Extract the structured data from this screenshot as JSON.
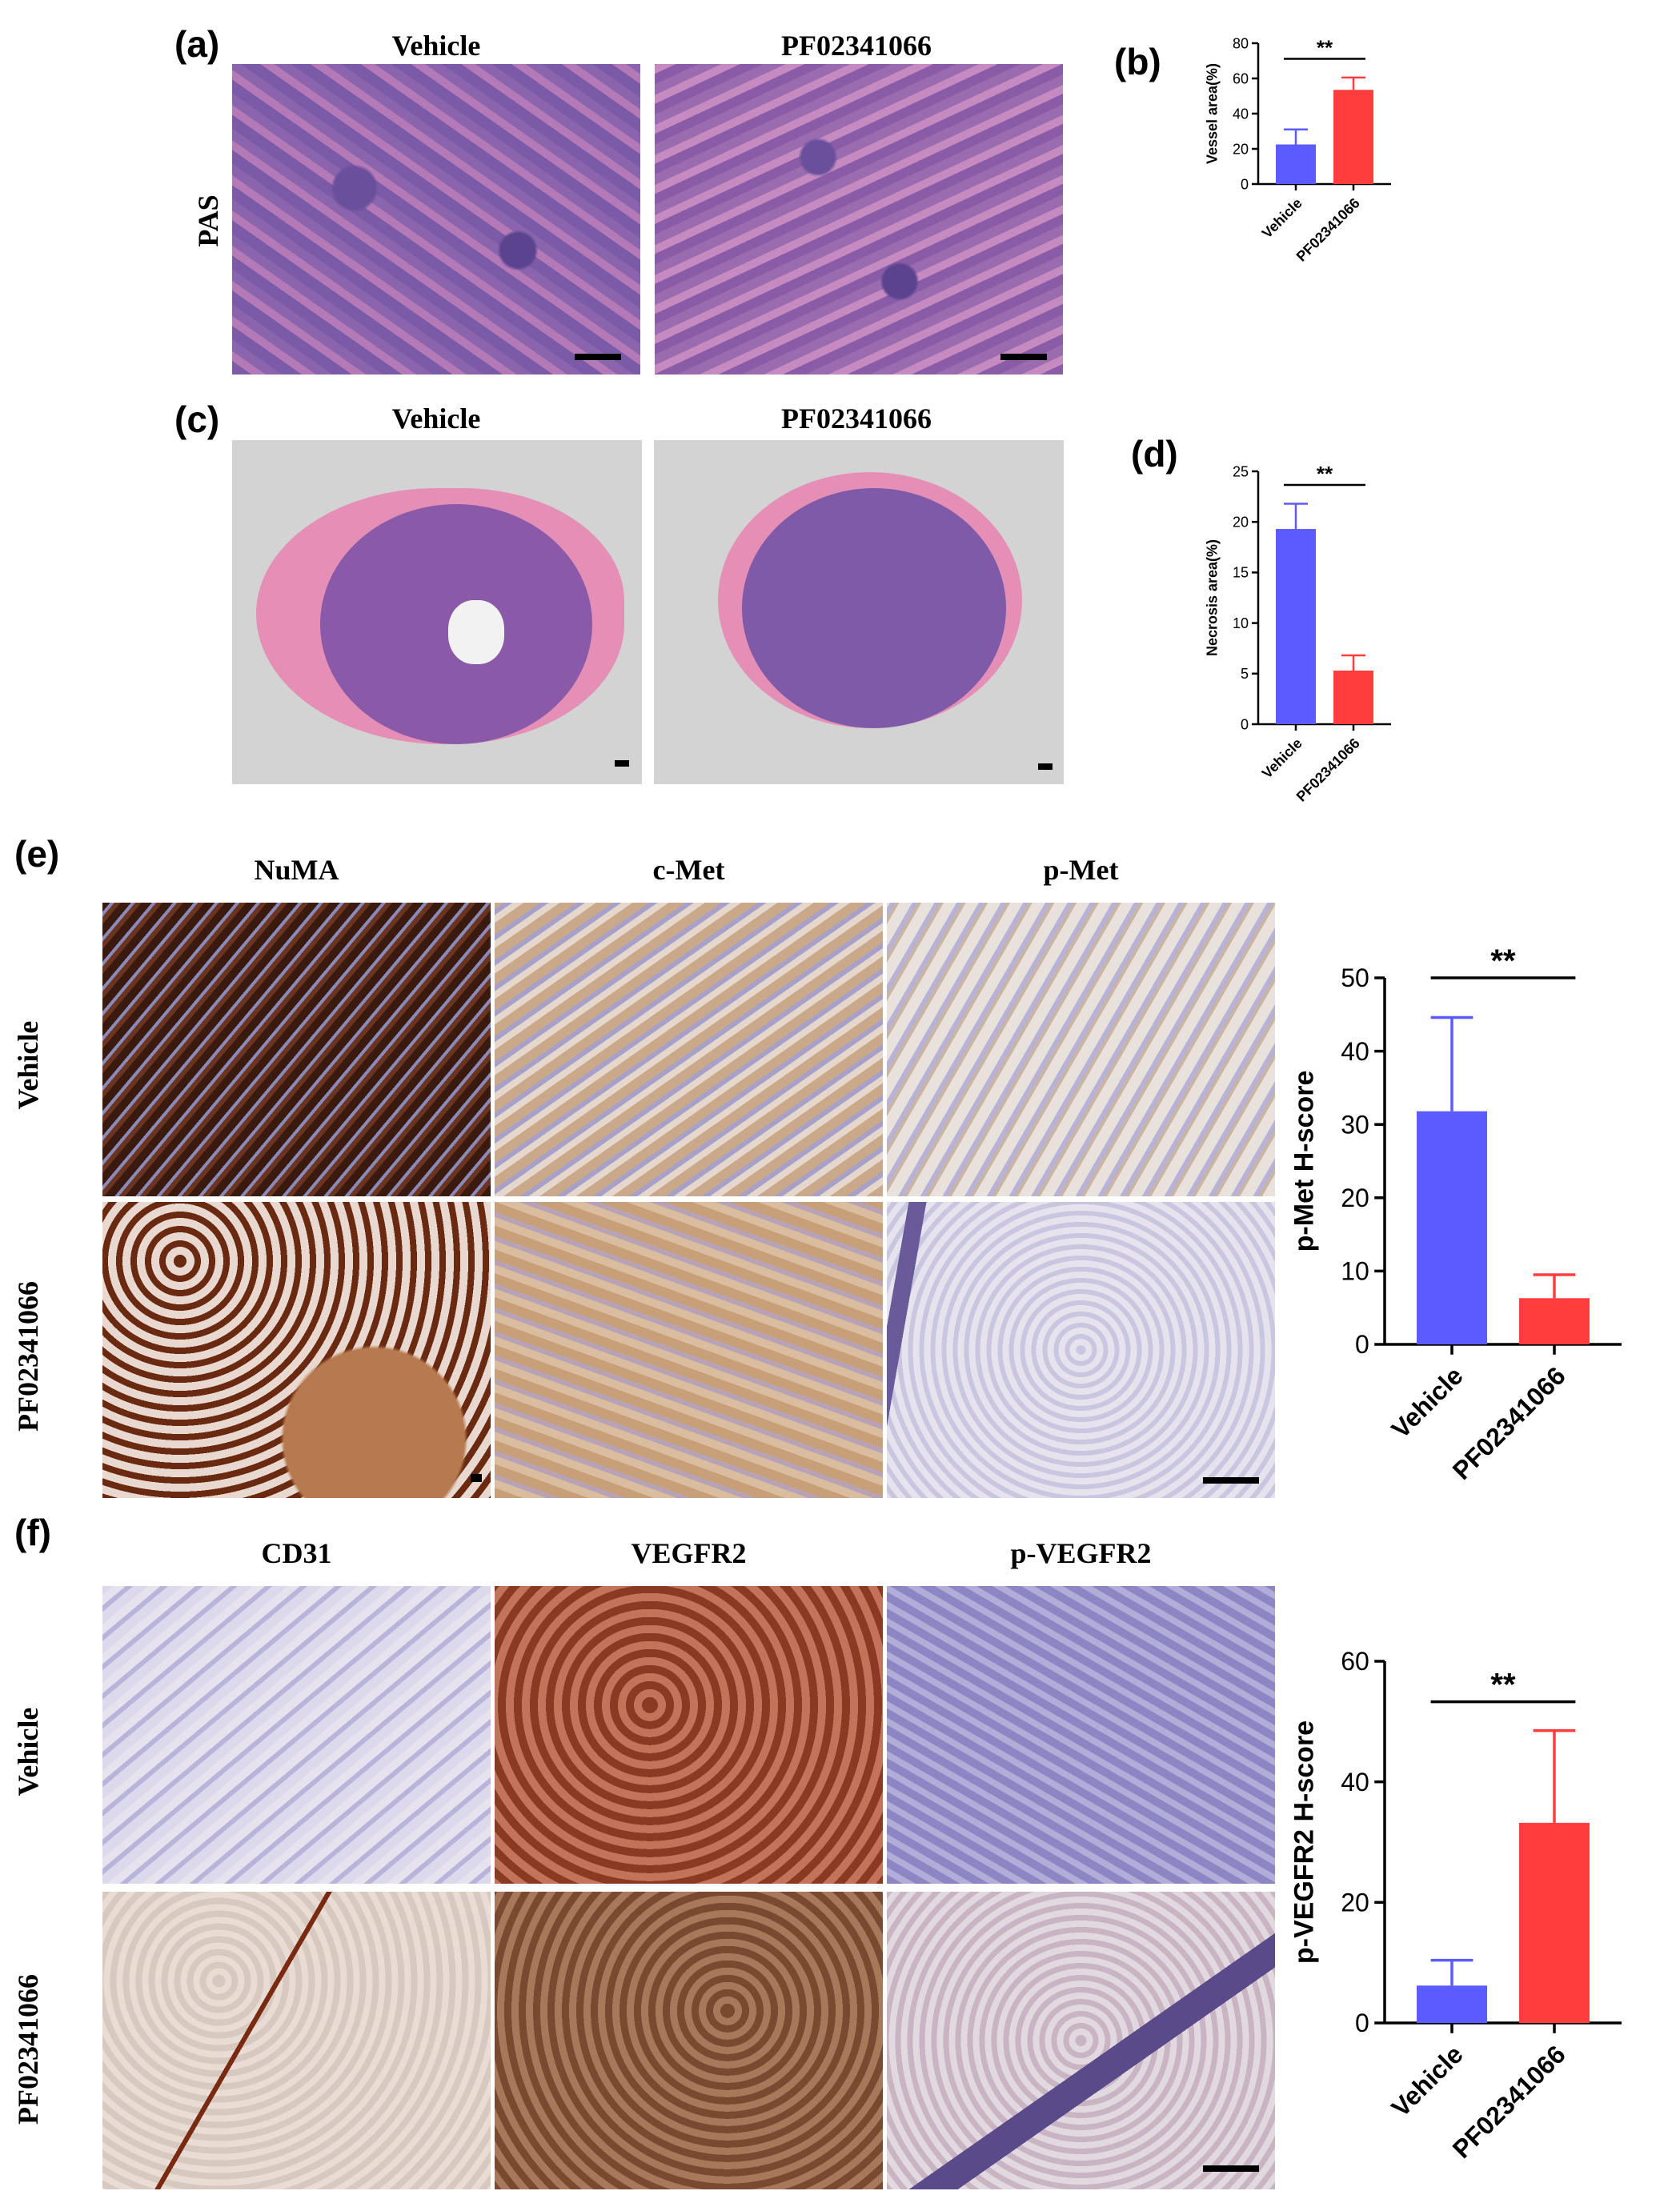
{
  "panels": {
    "a": {
      "label": "(a)",
      "col_titles": [
        "Vehicle",
        "PF02341066"
      ],
      "row_label": "PAS"
    },
    "b": {
      "label": "(b)"
    },
    "c": {
      "label": "(c)",
      "col_titles": [
        "Vehicle",
        "PF02341066"
      ]
    },
    "d": {
      "label": "(d)"
    },
    "e": {
      "label": "(e)",
      "col_titles": [
        "NuMA",
        "c-Met",
        "p-Met"
      ],
      "row_labels": [
        "Vehicle",
        "PF02341066"
      ]
    },
    "f": {
      "label": "(f)",
      "col_titles": [
        "CD31",
        "VEGFR2",
        "p-VEGFR2"
      ],
      "row_labels": [
        "Vehicle",
        "PF02341066"
      ]
    }
  },
  "colors": {
    "vehicle": "#5b5bff",
    "treated": "#ff3d3d",
    "he_pink": "#d98fc0",
    "he_purple": "#7a5aa8",
    "ihc_brown": "#7a3a1e",
    "ihc_blue": "#c9c4df"
  },
  "chart_data": [
    {
      "id": "b",
      "type": "bar",
      "categories": [
        "Vehicle",
        "PF02341066"
      ],
      "values": [
        22.5,
        53.5
      ],
      "errors": [
        8.5,
        7
      ],
      "ylabel": "Vessel area(%)",
      "ylim": [
        0,
        80
      ],
      "yticks": [
        0,
        20,
        40,
        60,
        80
      ],
      "significance": "**"
    },
    {
      "id": "d",
      "type": "bar",
      "categories": [
        "Vehicle",
        "PF02341066"
      ],
      "values": [
        19.3,
        5.3
      ],
      "errors": [
        2.5,
        1.5
      ],
      "ylabel": "Necrosis area(%)",
      "ylim": [
        0,
        25
      ],
      "yticks": [
        0,
        5,
        10,
        15,
        20,
        25
      ],
      "significance": "**"
    },
    {
      "id": "e",
      "type": "bar",
      "categories": [
        "Vehicle",
        "PF02341066"
      ],
      "values": [
        31.8,
        6.3
      ],
      "errors": [
        12.8,
        3.2
      ],
      "ylabel": "p-Met H-score",
      "ylim": [
        0,
        50
      ],
      "yticks": [
        0,
        10,
        20,
        30,
        40,
        50
      ],
      "significance": "**"
    },
    {
      "id": "f",
      "type": "bar",
      "categories": [
        "Vehicle",
        "PF02341066"
      ],
      "values": [
        6.2,
        33.2
      ],
      "errors": [
        4.2,
        15.3
      ],
      "ylabel": "p-VEGFR2 H-score",
      "ylim": [
        0,
        60
      ],
      "yticks": [
        0,
        20,
        40,
        60
      ],
      "significance": "**"
    }
  ]
}
